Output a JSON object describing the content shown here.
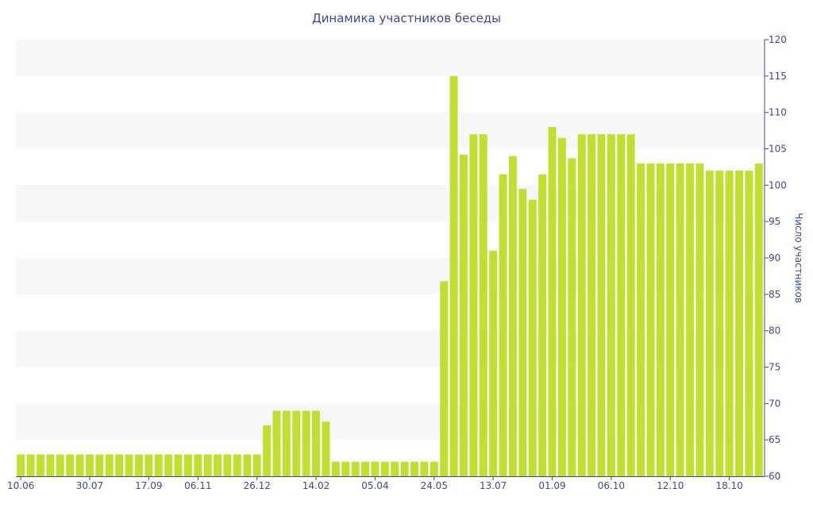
{
  "chart_data": {
    "type": "bar",
    "title": "Динамика участников беседы",
    "ylabel": "Число участников",
    "xlabel": "",
    "y_axis_side": "right",
    "ylim": [
      60,
      120
    ],
    "ytick_step": 5,
    "grid": "alternating horizontal bands",
    "legend": "none",
    "colors": {
      "bar": "#bfe031",
      "band": "#f7f7f7",
      "axis": "#3b4a8a",
      "text": "#3b4a8a"
    },
    "x_tick_labels": [
      "10.06",
      "30.07",
      "17.09",
      "06.11",
      "26.12",
      "14.02",
      "05.04",
      "24.05",
      "13.07",
      "01.09",
      "06.10",
      "12.10",
      "18.10"
    ],
    "x_tick_positions": [
      0,
      7,
      13,
      18,
      24,
      30,
      36,
      42,
      48,
      54,
      60,
      66,
      72
    ],
    "values": [
      63,
      63,
      63,
      63,
      63,
      63,
      63,
      63,
      63,
      63,
      63,
      63,
      63,
      63,
      63,
      63,
      63,
      63,
      63,
      63,
      63,
      63,
      63,
      63,
      63,
      67,
      69,
      69,
      69,
      69,
      69,
      67.5,
      62,
      62,
      62,
      62,
      62,
      62,
      62,
      62,
      62,
      62,
      62,
      86.8,
      115,
      104.2,
      107,
      107,
      91,
      101.5,
      104,
      99.5,
      98,
      101.5,
      108,
      106.5,
      103.7,
      107,
      107,
      107,
      107,
      107,
      107,
      103,
      103,
      103,
      103,
      103,
      103,
      103,
      102,
      102,
      102,
      102,
      102,
      103
    ]
  }
}
